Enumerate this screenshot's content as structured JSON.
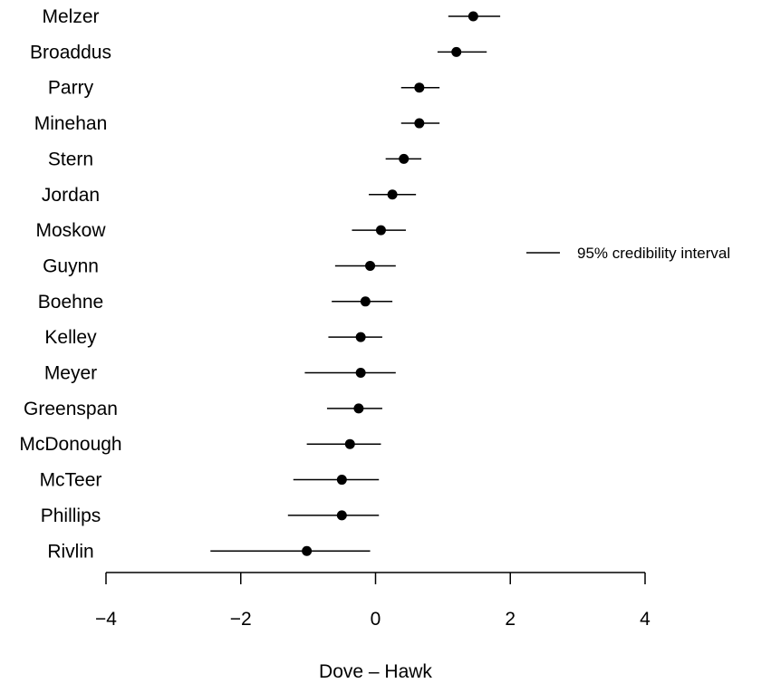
{
  "chart_data": {
    "type": "dot-interval",
    "title": "",
    "xlabel": "Dove – Hawk",
    "ylabel": "",
    "xlim": [
      -4,
      4
    ],
    "x_ticks": [
      -4,
      -2,
      0,
      2,
      4
    ],
    "x_tick_labels": [
      "−4",
      "−2",
      "0",
      "2",
      "4"
    ],
    "grid": false,
    "legend": {
      "label": "95% credibility interval",
      "placement": "right"
    },
    "categories": [
      "Melzer",
      "Broaddus",
      "Parry",
      "Minehan",
      "Stern",
      "Jordan",
      "Moskow",
      "Guynn",
      "Boehne",
      "Kelley",
      "Meyer",
      "Greenspan",
      "McDonough",
      "McTeer",
      "Phillips",
      "Rivlin"
    ],
    "estimates": [
      1.45,
      1.2,
      0.65,
      0.65,
      0.42,
      0.25,
      0.08,
      -0.08,
      -0.15,
      -0.22,
      -0.22,
      -0.25,
      -0.38,
      -0.5,
      -0.5,
      -1.02
    ],
    "lower": [
      1.08,
      0.92,
      0.38,
      0.38,
      0.15,
      -0.1,
      -0.35,
      -0.6,
      -0.65,
      -0.7,
      -1.05,
      -0.72,
      -1.02,
      -1.22,
      -1.3,
      -2.45
    ],
    "upper": [
      1.85,
      1.65,
      0.95,
      0.95,
      0.68,
      0.6,
      0.45,
      0.3,
      0.25,
      0.1,
      0.3,
      0.1,
      0.08,
      0.05,
      0.05,
      -0.08
    ]
  }
}
